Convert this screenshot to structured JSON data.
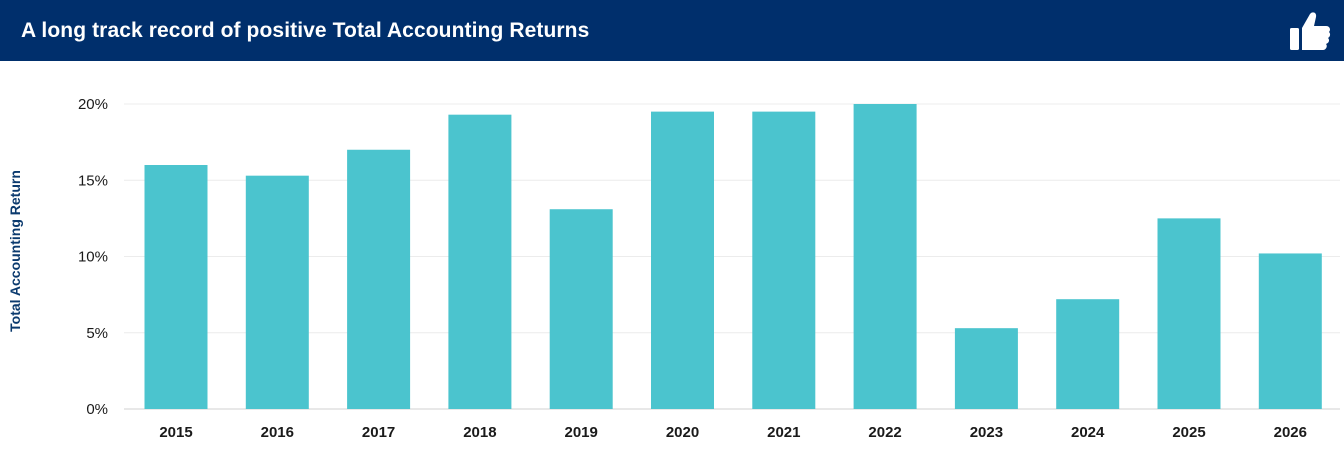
{
  "header": {
    "title": "A long track record of positive Total Accounting Returns",
    "icon": "thumbs-up-icon"
  },
  "chart_data": {
    "type": "bar",
    "title": "A long track record of positive Total Accounting Returns",
    "ylabel": "Total Accounting Return",
    "xlabel": "",
    "categories": [
      "2015",
      "2016",
      "2017",
      "2018",
      "2019",
      "2020",
      "2021",
      "2022",
      "2023",
      "2024",
      "2025",
      "2026"
    ],
    "values": [
      16.0,
      15.3,
      17.0,
      19.3,
      13.1,
      19.5,
      19.5,
      20.0,
      5.3,
      7.2,
      12.5,
      10.2
    ],
    "ylim": [
      0,
      20
    ],
    "yticks": [
      0,
      5,
      10,
      15,
      20
    ],
    "ytick_labels": [
      "0%",
      "5%",
      "10%",
      "15%",
      "20%"
    ],
    "grid": true,
    "legend": "none",
    "colors": {
      "bar": "#4bc4ce",
      "header_bg": "#002f6c",
      "ylabel": "#0b3a6e"
    }
  }
}
